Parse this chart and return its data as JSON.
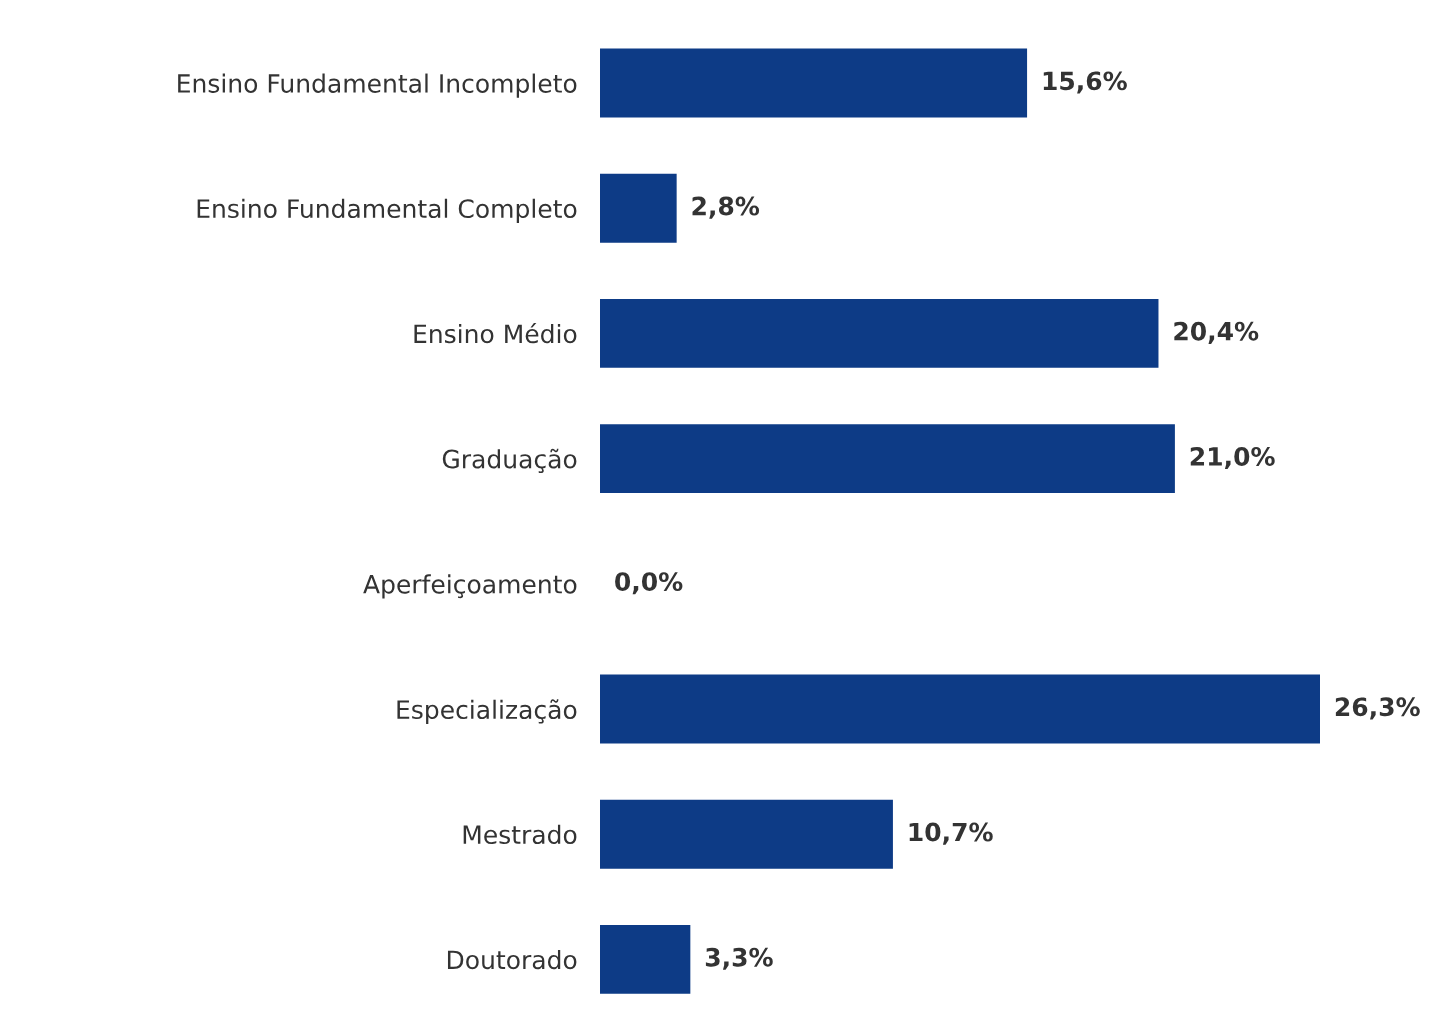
{
  "chart_data": {
    "type": "bar",
    "orientation": "horizontal",
    "categories": [
      "Ensino Fundamental Incompleto",
      "Ensino Fundamental Completo",
      "Ensino Médio",
      "Graduação",
      "Aperfeiçoamento",
      "Especialização",
      "Mestrado",
      "Doutorado"
    ],
    "values": [
      15.6,
      2.8,
      20.4,
      21.0,
      0.0,
      26.3,
      10.7,
      3.3
    ],
    "value_labels": [
      "15,6%",
      "2,8%",
      "20,4%",
      "21,0%",
      "0,0%",
      "26,3%",
      "10,7%",
      "3,3%"
    ],
    "color": "#0d3b86",
    "grid": false,
    "legend": false
  }
}
